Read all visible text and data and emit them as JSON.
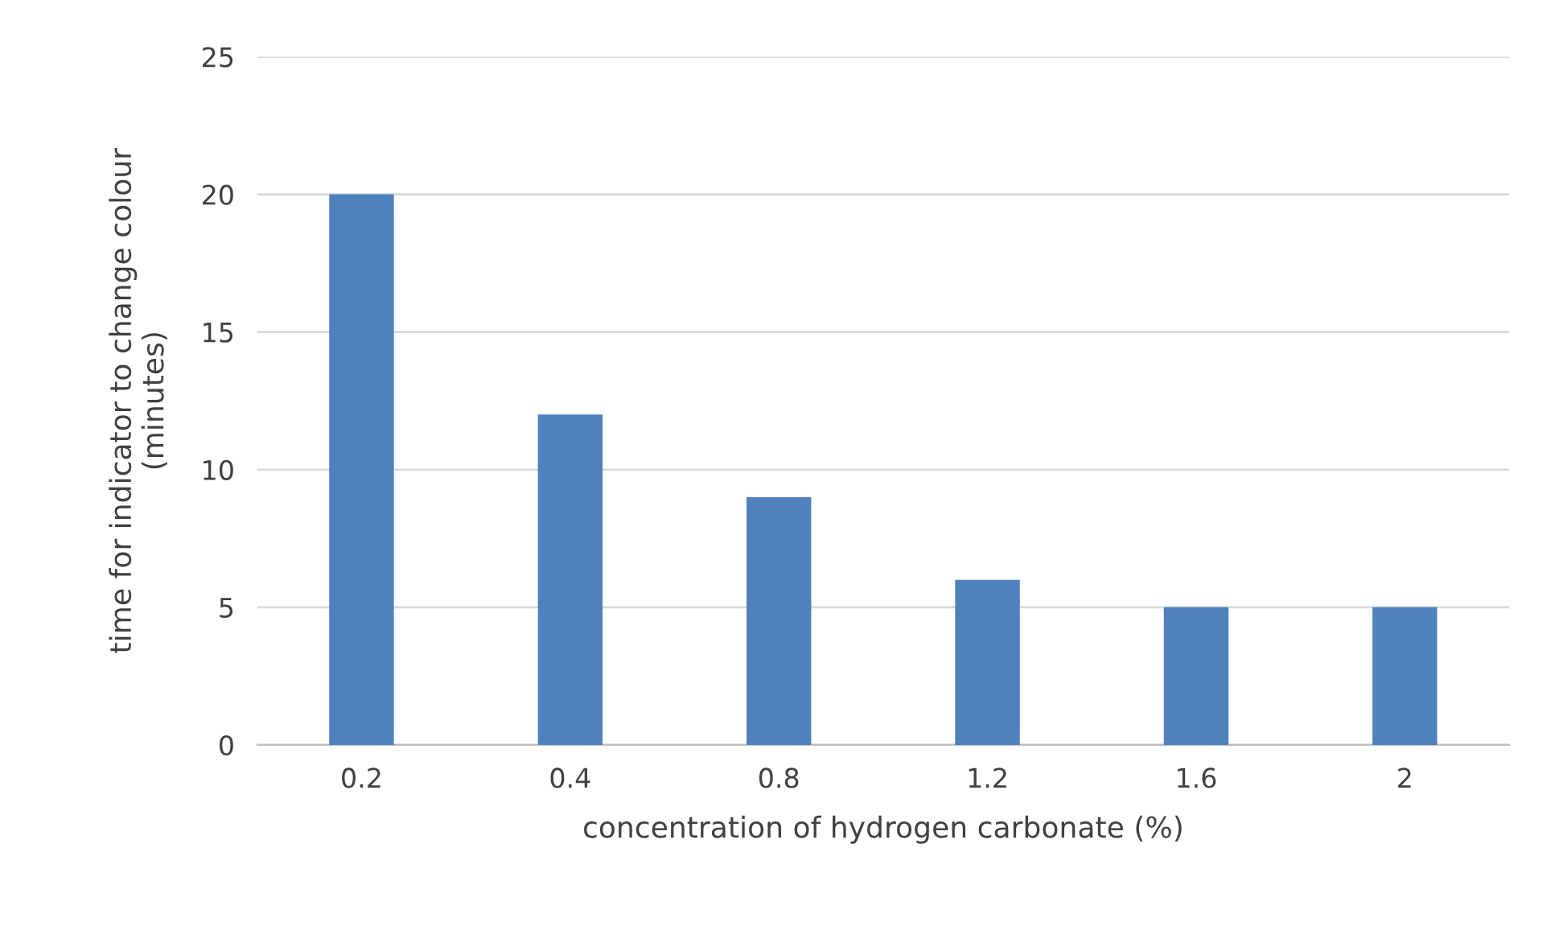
{
  "chart_data": {
    "type": "bar",
    "categories": [
      "0.2",
      "0.4",
      "0.8",
      "1.2",
      "1.6",
      "2"
    ],
    "values": [
      20,
      12,
      9,
      6,
      5,
      5
    ],
    "color": "#4f81bd",
    "xlabel": "concentration of hydrogen carbonate (%)",
    "ylabel": "time for indicator to change colour\n(minutes)",
    "ylim": [
      0,
      25
    ],
    "yticks": [
      0,
      5,
      10,
      15,
      20,
      25
    ],
    "grid": "y",
    "legend": false
  }
}
